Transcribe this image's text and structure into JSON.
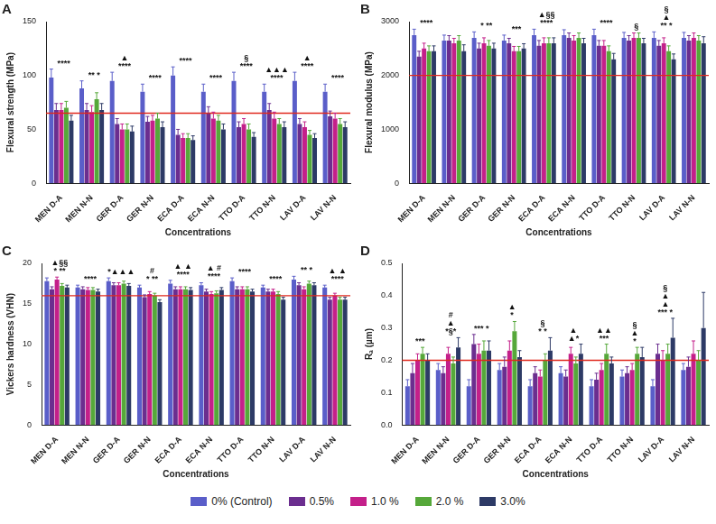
{
  "chart_data": [
    {
      "type": "bar",
      "title": "A",
      "x_label": "Concentrations",
      "y_label": "Flexural strength (MPa)",
      "categories": [
        "MEN D-A",
        "MEN N-N",
        "GER D-A",
        "GER N-N",
        "ECA D-A",
        "ECA N-N",
        "TTO D-A",
        "TTO N-N",
        "LAV D-A",
        "LAV N-N"
      ],
      "series": [
        {
          "name": "0% (Control)",
          "color": "#5a5ec9",
          "values": [
            98,
            88,
            95,
            85,
            100,
            85,
            95,
            85,
            95,
            85
          ],
          "errors": [
            8,
            7,
            8,
            7,
            8,
            7,
            8,
            7,
            8,
            7
          ]
        },
        {
          "name": "0.5%",
          "color": "#6b2e8f",
          "values": [
            68,
            68,
            55,
            57,
            45,
            65,
            52,
            68,
            55,
            62
          ],
          "errors": [
            6,
            6,
            5,
            5,
            5,
            6,
            5,
            6,
            5,
            5
          ]
        },
        {
          "name": "1.0 %",
          "color": "#c4208a",
          "values": [
            68,
            66,
            50,
            58,
            42,
            60,
            55,
            60,
            52,
            60
          ],
          "errors": [
            6,
            6,
            5,
            5,
            4,
            6,
            5,
            6,
            5,
            5
          ]
        },
        {
          "name": "2.0 %",
          "color": "#56a83a",
          "values": [
            70,
            78,
            50,
            60,
            42,
            58,
            50,
            55,
            45,
            55
          ],
          "errors": [
            6,
            6,
            5,
            5,
            4,
            5,
            5,
            5,
            4,
            5
          ]
        },
        {
          "name": "3.0%",
          "color": "#2d3a66",
          "values": [
            58,
            68,
            48,
            52,
            40,
            50,
            43,
            52,
            42,
            52
          ],
          "errors": [
            5,
            6,
            5,
            5,
            4,
            5,
            4,
            5,
            4,
            5
          ]
        }
      ],
      "annotations": [
        [
          "****"
        ],
        [
          "** *"
        ],
        [
          "▲",
          "****"
        ],
        [
          "****"
        ],
        [
          "****"
        ],
        [
          "****"
        ],
        [
          "§",
          "****"
        ],
        [
          "▲▲▲",
          "****"
        ],
        [
          "▲",
          "****"
        ],
        [
          "****"
        ]
      ],
      "reference_line": 65,
      "ylim": [
        0,
        150
      ],
      "yticks": [
        0,
        50,
        100,
        150
      ],
      "grid": false,
      "legend": "bottom"
    },
    {
      "type": "bar",
      "title": "B",
      "x_label": "Concentrations",
      "y_label": "Flexural modulus (MPa)",
      "categories": [
        "MEN D-A",
        "MEN N-N",
        "GER D-A",
        "GER N-N",
        "ECA D-A",
        "ECA N-N",
        "TTO D-A",
        "TTO N-N",
        "LAV D-A",
        "LAV N-N"
      ],
      "series": [
        {
          "name": "0% (Control)",
          "color": "#5a5ec9",
          "values": [
            2750,
            2650,
            2700,
            2650,
            2750,
            2750,
            2750,
            2700,
            2700,
            2700
          ],
          "errors": [
            110,
            100,
            110,
            100,
            110,
            100,
            110,
            100,
            110,
            100
          ]
        },
        {
          "name": "0.5%",
          "color": "#6b2e8f",
          "values": [
            2350,
            2650,
            2500,
            2600,
            2550,
            2700,
            2550,
            2650,
            2550,
            2650
          ],
          "errors": [
            100,
            90,
            100,
            90,
            100,
            90,
            100,
            90,
            100,
            90
          ]
        },
        {
          "name": "1.0 %",
          "color": "#c4208a",
          "values": [
            2500,
            2600,
            2600,
            2450,
            2600,
            2650,
            2550,
            2700,
            2600,
            2700
          ],
          "errors": [
            100,
            90,
            100,
            90,
            100,
            90,
            100,
            90,
            100,
            90
          ]
        },
        {
          "name": "2.0 %",
          "color": "#56a83a",
          "values": [
            2450,
            2650,
            2550,
            2450,
            2600,
            2700,
            2450,
            2700,
            2450,
            2650
          ],
          "errors": [
            100,
            90,
            100,
            90,
            100,
            90,
            100,
            90,
            100,
            90
          ]
        },
        {
          "name": "3.0%",
          "color": "#2d3a66",
          "values": [
            2450,
            2450,
            2500,
            2500,
            2600,
            2600,
            2300,
            2600,
            2300,
            2600
          ],
          "errors": [
            100,
            120,
            100,
            90,
            100,
            90,
            110,
            90,
            100,
            120
          ]
        }
      ],
      "annotations": [
        [
          "****"
        ],
        null,
        [
          "* **"
        ],
        [
          "***"
        ],
        [
          "▲§§",
          "****"
        ],
        null,
        [
          "****"
        ],
        [
          "§"
        ],
        [
          "§",
          "▲",
          "** *"
        ],
        null
      ],
      "reference_line": 2000,
      "ylim": [
        0,
        3000
      ],
      "yticks": [
        0,
        1000,
        2000,
        3000
      ],
      "grid": false
    },
    {
      "type": "bar",
      "title": "C",
      "x_label": "Concentrations",
      "y_label": "Vickers hardness (VHN)",
      "categories": [
        "MEN D-A",
        "MEN N-N",
        "GER D-A",
        "GER N-N",
        "ECA D-A",
        "ECA N-N",
        "TTO D-A",
        "TTO N-N",
        "LAV D-A",
        "LAV N-N"
      ],
      "series": [
        {
          "name": "0% (Control)",
          "color": "#5a5ec9",
          "values": [
            17.8,
            17.0,
            17.8,
            17.0,
            17.5,
            17.3,
            17.8,
            17.0,
            18.0,
            17.0
          ],
          "errors": [
            0.4,
            0.3,
            0.4,
            0.3,
            0.4,
            0.3,
            0.4,
            0.3,
            0.4,
            0.3
          ]
        },
        {
          "name": "0.5%",
          "color": "#6b2e8f",
          "values": [
            16.8,
            16.8,
            17.3,
            15.8,
            16.8,
            16.5,
            16.8,
            16.5,
            17.3,
            15.5
          ],
          "errors": [
            0.3,
            0.3,
            0.3,
            0.3,
            0.3,
            0.3,
            0.3,
            0.3,
            0.3,
            0.3
          ]
        },
        {
          "name": "1.0 %",
          "color": "#c4208a",
          "values": [
            18.0,
            16.7,
            17.3,
            16.2,
            16.8,
            16.2,
            16.8,
            16.5,
            16.8,
            16.0
          ],
          "errors": [
            0.3,
            0.3,
            0.3,
            0.3,
            0.3,
            0.3,
            0.3,
            0.3,
            0.3,
            0.3
          ]
        },
        {
          "name": "2.0 %",
          "color": "#56a83a",
          "values": [
            17.2,
            16.7,
            17.5,
            16.0,
            16.8,
            16.3,
            16.8,
            16.2,
            17.5,
            15.5
          ],
          "errors": [
            0.3,
            0.3,
            0.3,
            0.3,
            0.3,
            0.3,
            0.3,
            0.3,
            0.3,
            0.3
          ]
        },
        {
          "name": "3.0%",
          "color": "#2d3a66",
          "values": [
            17.0,
            16.5,
            17.2,
            15.2,
            16.7,
            16.7,
            16.5,
            15.5,
            17.3,
            15.5
          ],
          "errors": [
            0.3,
            0.3,
            0.3,
            0.3,
            0.3,
            0.3,
            0.3,
            0.3,
            0.3,
            0.3
          ]
        }
      ],
      "annotations": [
        [
          "▲§§",
          "* **"
        ],
        [
          "****"
        ],
        [
          "*▲▲▲"
        ],
        [
          "#",
          "* **"
        ],
        [
          "▲ ▲",
          "****"
        ],
        [
          "▲ #",
          "****"
        ],
        [
          "****"
        ],
        [
          "****"
        ],
        [
          "** *"
        ],
        [
          "▲ ▲",
          "****"
        ]
      ],
      "reference_line": 16,
      "ylim": [
        0,
        20
      ],
      "yticks": [
        0,
        5,
        10,
        15,
        20
      ],
      "grid": false
    },
    {
      "type": "bar",
      "title": "D",
      "x_label": "Concentrations",
      "y_label": "Rₐ (µm)",
      "categories": [
        "MEN D-A",
        "MEN N-N",
        "GER D-A",
        "GER N-N",
        "ECA D-A",
        "ECA N-N",
        "TTO D-A",
        "TTO N-N",
        "LAV D-A",
        "LAV N-N"
      ],
      "series": [
        {
          "name": "0% (Control)",
          "color": "#5a5ec9",
          "values": [
            0.12,
            0.17,
            0.12,
            0.17,
            0.12,
            0.16,
            0.12,
            0.15,
            0.12,
            0.17
          ],
          "errors": [
            0.02,
            0.02,
            0.02,
            0.02,
            0.02,
            0.02,
            0.02,
            0.02,
            0.02,
            0.02
          ]
        },
        {
          "name": "0.5%",
          "color": "#6b2e8f",
          "values": [
            0.16,
            0.16,
            0.25,
            0.18,
            0.16,
            0.15,
            0.14,
            0.16,
            0.22,
            0.18
          ],
          "errors": [
            0.03,
            0.02,
            0.03,
            0.03,
            0.02,
            0.02,
            0.02,
            0.02,
            0.03,
            0.03
          ]
        },
        {
          "name": "1.0 %",
          "color": "#c4208a",
          "values": [
            0.2,
            0.22,
            0.22,
            0.23,
            0.15,
            0.22,
            0.17,
            0.17,
            0.2,
            0.22
          ],
          "errors": [
            0.02,
            0.02,
            0.03,
            0.03,
            0.02,
            0.02,
            0.02,
            0.02,
            0.03,
            0.04
          ]
        },
        {
          "name": "2.0 %",
          "color": "#56a83a",
          "values": [
            0.22,
            0.19,
            0.23,
            0.29,
            0.2,
            0.19,
            0.22,
            0.22,
            0.22,
            0.2
          ],
          "errors": [
            0.02,
            0.02,
            0.03,
            0.03,
            0.02,
            0.02,
            0.03,
            0.02,
            0.03,
            0.03
          ]
        },
        {
          "name": "3.0%",
          "color": "#2d3a66",
          "values": [
            0.2,
            0.24,
            0.23,
            0.21,
            0.23,
            0.22,
            0.19,
            0.21,
            0.27,
            0.3
          ],
          "errors": [
            0.02,
            0.03,
            0.03,
            0.02,
            0.04,
            0.03,
            0.02,
            0.03,
            0.06,
            0.11
          ]
        }
      ],
      "annotations": [
        [
          "***"
        ],
        [
          "#",
          "▲",
          "*§*"
        ],
        [
          "*** *"
        ],
        [
          "▲",
          "*"
        ],
        [
          "§",
          "* *"
        ],
        [
          "▲",
          "▲*"
        ],
        [
          "▲▲",
          "***"
        ],
        [
          "§",
          "▲",
          "*"
        ],
        [
          "§",
          "▲",
          "▲",
          "*** *"
        ],
        null
      ],
      "reference_line": 0.2,
      "ylim": [
        0,
        0.5
      ],
      "yticks": [
        {
          "value": 0,
          "label": "0.0"
        },
        0.1,
        0.2,
        0.3,
        0.4,
        0.5
      ],
      "grid": false
    }
  ]
}
